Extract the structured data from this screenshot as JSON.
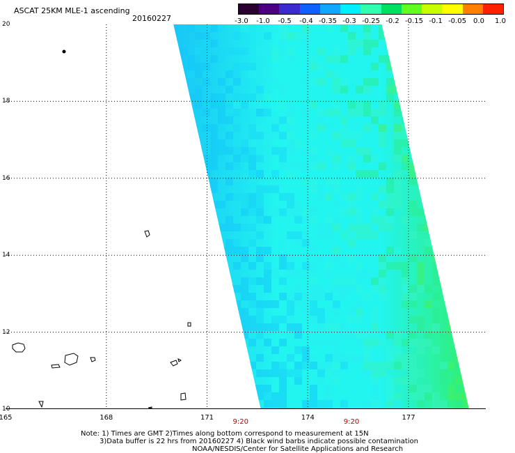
{
  "title": "ASCAT 25KM MLE-1 ascending",
  "date": "20160227",
  "colorbar": {
    "tick_labels": [
      "-3.0",
      "-1.0",
      "-0.5",
      "-0.4",
      "-0.35",
      "-0.3",
      "-0.25",
      "-0.2",
      "-0.15",
      "-0.1",
      "-0.05",
      "0.0",
      "1.0"
    ],
    "colors": [
      "#2a0030",
      "#4a0080",
      "#3a2ad0",
      "#1060ff",
      "#10a8ff",
      "#00f0ff",
      "#30ffb0",
      "#00e060",
      "#60ff20",
      "#c8ff00",
      "#ffff00",
      "#ff8000",
      "#ff2000"
    ]
  },
  "axes": {
    "y_labels": [
      "20",
      "18",
      "16",
      "14",
      "12",
      "10"
    ],
    "x_labels": [
      "165",
      "168",
      "171",
      "174",
      "177"
    ],
    "x_range": [
      165,
      179.3
    ],
    "y_range": [
      10,
      20
    ]
  },
  "time_labels": [
    {
      "lon": 172.0,
      "text": "9:20"
    },
    {
      "lon": 175.3,
      "text": "9:20"
    }
  ],
  "swath": {
    "top_left_lon": 170.0,
    "top_right_lon": 176.2,
    "bottom_left_lon": 172.6,
    "bottom_right_lon": 178.8,
    "fill_color": "#22f4f0",
    "bluish_color": "#18c6f6",
    "green_color": "#30f070"
  },
  "notes": [
    "Note: 1) Times are GMT 2)Times along bottom correspond to measurement at 15N",
    "3)Data buffer is 22 hrs from 20160227 4) Black wind barbs indicate possible contamination",
    "NOAA/NESDIS/Center for Satellite Applications and Research"
  ]
}
